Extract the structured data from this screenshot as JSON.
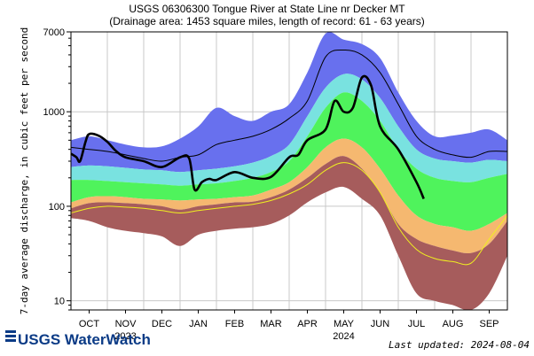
{
  "chart_data": {
    "type": "area",
    "title": "USGS 06306300 Tongue River at State Line nr Decker MT",
    "subtitle": "(Drainage area: 1453 square miles, length of record: 61 - 63 years)",
    "ylabel": "7-day average discharge, in cubic feet per second",
    "y_scale": "log",
    "ylim": [
      8,
      7000
    ],
    "y_ticks": [
      "7000",
      "1000",
      "100",
      "10"
    ],
    "y_tick_values": [
      7000,
      1000,
      100,
      10
    ],
    "x_ticks": [
      "OCT",
      "NOV",
      "DEC",
      "JAN",
      "FEB",
      "MAR",
      "APR",
      "MAY",
      "JUN",
      "JUL",
      "AUG",
      "SEP"
    ],
    "x_year_labels": [
      {
        "label": "2023",
        "after_month_index": 1
      },
      {
        "label": "2024",
        "after_month_index": 7
      }
    ],
    "xlim_months": [
      0,
      12
    ],
    "grid": true,
    "legend": "none",
    "band_colors": {
      "lowest_to_p10": "#a65c5c",
      "p10_to_p25": "#f5b870",
      "p25_to_p75": "#4ff35c",
      "p75_to_p90": "#79e2e0",
      "p90_to_highest": "#6870ee",
      "median_line": "#000000",
      "mean_line": "#f0f020",
      "current_line": "#000000"
    },
    "months_x": [
      0,
      0.5,
      1,
      1.5,
      2,
      2.5,
      3,
      3.5,
      4,
      4.5,
      5,
      5.5,
      6,
      6.5,
      7,
      7.5,
      8,
      8.5,
      9,
      9.5,
      10,
      10.5,
      11,
      11.5,
      12
    ],
    "series": [
      {
        "role": "min",
        "values": [
          75,
          70,
          60,
          55,
          52,
          48,
          38,
          50,
          55,
          58,
          60,
          65,
          80,
          110,
          140,
          160,
          120,
          80,
          30,
          12,
          10,
          9,
          8,
          12,
          30
        ]
      },
      {
        "role": "p10",
        "values": [
          95,
          108,
          110,
          108,
          105,
          100,
          92,
          100,
          105,
          110,
          112,
          125,
          150,
          200,
          280,
          340,
          250,
          140,
          65,
          45,
          38,
          34,
          32,
          40,
          70
        ]
      },
      {
        "role": "p25",
        "values": [
          110,
          125,
          128,
          125,
          120,
          118,
          115,
          118,
          120,
          125,
          130,
          150,
          180,
          260,
          420,
          520,
          420,
          250,
          130,
          80,
          65,
          60,
          55,
          65,
          85
        ]
      },
      {
        "role": "p75",
        "values": [
          190,
          190,
          185,
          180,
          175,
          170,
          165,
          170,
          175,
          185,
          200,
          230,
          300,
          550,
          1100,
          1600,
          1300,
          800,
          400,
          250,
          200,
          185,
          180,
          200,
          220
        ]
      },
      {
        "role": "p90",
        "values": [
          260,
          270,
          265,
          255,
          245,
          240,
          230,
          240,
          250,
          265,
          290,
          340,
          450,
          900,
          1800,
          2500,
          2200,
          1400,
          700,
          400,
          320,
          300,
          290,
          310,
          300
        ]
      },
      {
        "role": "max",
        "values": [
          500,
          550,
          500,
          450,
          420,
          430,
          520,
          700,
          1100,
          900,
          800,
          1000,
          1200,
          2600,
          6700,
          5800,
          5200,
          3700,
          1600,
          800,
          550,
          560,
          600,
          650,
          500
        ]
      },
      {
        "role": "median",
        "values": [
          420,
          400,
          380,
          350,
          320,
          300,
          330,
          350,
          450,
          500,
          550,
          650,
          850,
          1300,
          3800,
          4500,
          4000,
          2600,
          1200,
          550,
          400,
          350,
          330,
          380,
          380
        ]
      },
      {
        "role": "mean",
        "values": [
          85,
          95,
          100,
          98,
          95,
          90,
          85,
          90,
          95,
          100,
          105,
          115,
          135,
          170,
          240,
          290,
          240,
          140,
          60,
          35,
          28,
          26,
          25,
          45,
          80
        ]
      },
      {
        "role": "current",
        "x": [
          0,
          0.15,
          0.25,
          0.4,
          0.5,
          0.75,
          1,
          1.25,
          1.5,
          2,
          2.5,
          3,
          3.25,
          3.4,
          3.6,
          3.8,
          4,
          4.5,
          5,
          5.5,
          6,
          6.25,
          6.5,
          7,
          7.25,
          7.5,
          7.75,
          8,
          8.25,
          8.5,
          9,
          9.5,
          9.7
        ],
        "values": [
          360,
          330,
          300,
          480,
          580,
          560,
          480,
          380,
          330,
          300,
          260,
          330,
          320,
          150,
          180,
          195,
          190,
          230,
          200,
          205,
          330,
          350,
          500,
          650,
          1300,
          1000,
          1100,
          2300,
          1900,
          700,
          400,
          180,
          120
        ]
      }
    ]
  },
  "footer": {
    "brand": "USGS WaterWatch",
    "updated": "Last updated: 2024-08-04"
  }
}
